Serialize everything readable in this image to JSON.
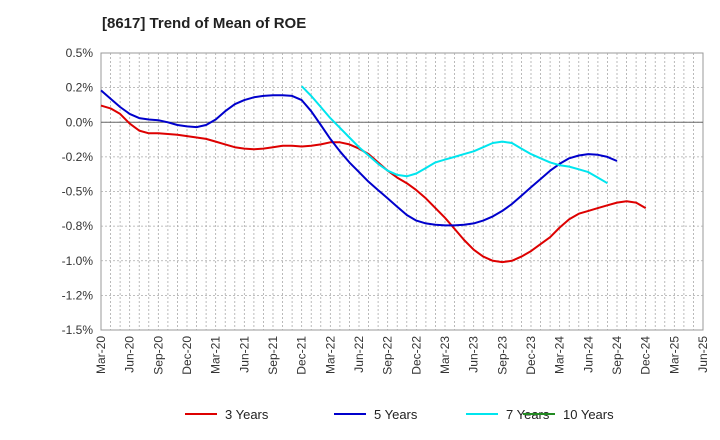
{
  "chart_data": {
    "type": "line",
    "title": "[8617]  Trend of Mean of ROE",
    "xlabel": "",
    "ylabel": "",
    "x_tick_labels": [
      "Mar-20",
      "Jun-20",
      "Sep-20",
      "Dec-20",
      "Mar-21",
      "Jun-21",
      "Sep-21",
      "Dec-21",
      "Mar-22",
      "Jun-22",
      "Sep-22",
      "Dec-22",
      "Mar-23",
      "Jun-23",
      "Sep-23",
      "Dec-23",
      "Mar-24",
      "Jun-24",
      "Sep-24",
      "Dec-24",
      "Mar-25",
      "Jun-25"
    ],
    "y_tick_labels": [
      "0.5%",
      "0.2%",
      "0.0%",
      "-0.2%",
      "-0.5%",
      "-0.8%",
      "-1.0%",
      "-1.2%",
      "-1.5%"
    ],
    "ylim": [
      -1.5,
      0.5
    ],
    "grid": true,
    "legend_position": "bottom",
    "series": [
      {
        "name": "3 Years",
        "color": "#dd0000",
        "start_index": 0,
        "values": [
          0.12,
          0.1,
          0.06,
          -0.01,
          -0.06,
          -0.08,
          -0.08,
          -0.085,
          -0.09,
          -0.1,
          -0.11,
          -0.12,
          -0.14,
          -0.16,
          -0.18,
          -0.19,
          -0.195,
          -0.19,
          -0.18,
          -0.17,
          -0.17,
          -0.175,
          -0.17,
          -0.16,
          -0.145,
          -0.145,
          -0.16,
          -0.19,
          -0.23,
          -0.29,
          -0.35,
          -0.4,
          -0.44,
          -0.49,
          -0.55,
          -0.62,
          -0.69,
          -0.77,
          -0.85,
          -0.92,
          -0.97,
          -1.0,
          -1.01,
          -1.0,
          -0.97,
          -0.93,
          -0.88,
          -0.83,
          -0.76,
          -0.7,
          -0.66,
          -0.64,
          -0.62,
          -0.6,
          -0.58,
          -0.57,
          -0.58,
          -0.62
        ]
      },
      {
        "name": "5 Years",
        "color": "#0000cc",
        "start_index": 0,
        "values": [
          0.23,
          0.17,
          0.11,
          0.06,
          0.03,
          0.02,
          0.015,
          0.0,
          -0.02,
          -0.03,
          -0.035,
          -0.02,
          0.02,
          0.08,
          0.13,
          0.16,
          0.18,
          0.19,
          0.195,
          0.195,
          0.19,
          0.16,
          0.08,
          -0.02,
          -0.12,
          -0.21,
          -0.29,
          -0.36,
          -0.43,
          -0.49,
          -0.55,
          -0.61,
          -0.67,
          -0.71,
          -0.73,
          -0.74,
          -0.745,
          -0.745,
          -0.74,
          -0.73,
          -0.71,
          -0.68,
          -0.64,
          -0.59,
          -0.53,
          -0.47,
          -0.41,
          -0.35,
          -0.3,
          -0.26,
          -0.24,
          -0.23,
          -0.235,
          -0.25,
          -0.28
        ]
      },
      {
        "name": "7 Years",
        "color": "#00e5ee",
        "start_index": 21,
        "values": [
          0.26,
          0.19,
          0.11,
          0.03,
          -0.04,
          -0.11,
          -0.18,
          -0.24,
          -0.3,
          -0.35,
          -0.38,
          -0.39,
          -0.37,
          -0.33,
          -0.29,
          -0.27,
          -0.25,
          -0.23,
          -0.21,
          -0.18,
          -0.15,
          -0.14,
          -0.15,
          -0.19,
          -0.23,
          -0.26,
          -0.29,
          -0.31,
          -0.32,
          -0.34,
          -0.36,
          -0.4,
          -0.44
        ]
      },
      {
        "name": "10 Years",
        "color": "#228b22",
        "start_index": 0,
        "values": []
      }
    ]
  }
}
